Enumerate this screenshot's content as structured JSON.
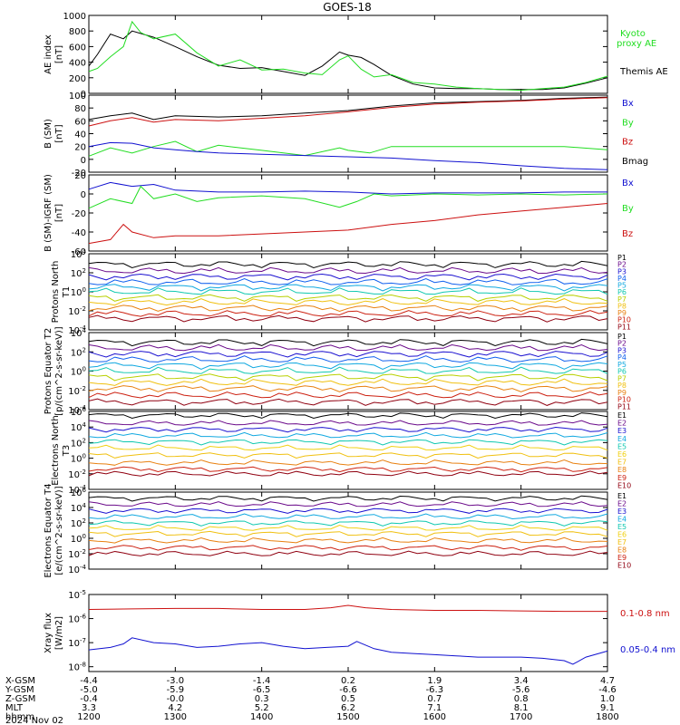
{
  "title": "GOES-18",
  "colors": {
    "black": "#000000",
    "green": "#22dd22",
    "blue": "#1010d0",
    "red": "#cc1010"
  },
  "time_axis": {
    "ticks": [
      "1200",
      "1300",
      "1400",
      "1500",
      "1600",
      "1700",
      "1800"
    ],
    "row_labels": [
      "X-GSM",
      "Y-GSM",
      "Z-GSM",
      "MLT",
      "hhmm"
    ],
    "rows": [
      [
        "-4.4",
        "-3.0",
        "-1.4",
        "0.2",
        "1.9",
        "3.4",
        "4.7"
      ],
      [
        "-5.0",
        "-5.9",
        "-6.5",
        "-6.6",
        "-6.3",
        "-5.6",
        "-4.6"
      ],
      [
        "-0.4",
        "-0.0",
        "0.3",
        "0.5",
        "0.7",
        "0.8",
        "1.0"
      ],
      [
        "3.3",
        "4.2",
        "5.2",
        "6.2",
        "7.1",
        "8.1",
        "9.1"
      ],
      [
        "1200",
        "1300",
        "1400",
        "1500",
        "1600",
        "1700",
        "1800"
      ]
    ],
    "date": "2024 Nov 02"
  },
  "chart_data": [
    {
      "type": "line",
      "ylabel": "AE index [nT]",
      "ylim": [
        0,
        1000
      ],
      "yticks": [
        "0",
        "200",
        "400",
        "600",
        "800",
        "1000"
      ],
      "legend": [
        {
          "text": "Kyoto",
          "color": "green"
        },
        {
          "text": "proxy AE",
          "color": "green"
        },
        {
          "text": "Themis AE",
          "color": "black"
        }
      ],
      "series": [
        {
          "name": "Themis AE",
          "color": "black",
          "x": [
            12.0,
            12.1,
            12.25,
            12.4,
            12.5,
            12.75,
            13.0,
            13.25,
            13.5,
            13.75,
            14.0,
            14.25,
            14.5,
            14.7,
            14.9,
            15.0,
            15.15,
            15.3,
            15.5,
            15.75,
            16.0,
            16.25,
            16.5,
            16.75,
            17.0,
            17.25,
            17.5,
            17.75,
            18.0
          ],
          "y": [
            350,
            500,
            760,
            700,
            800,
            720,
            600,
            470,
            360,
            320,
            330,
            280,
            230,
            350,
            530,
            490,
            460,
            370,
            230,
            120,
            70,
            60,
            60,
            50,
            50,
            50,
            70,
            130,
            200
          ]
        },
        {
          "name": "Kyoto proxy AE",
          "color": "green",
          "x": [
            12.0,
            12.1,
            12.25,
            12.4,
            12.5,
            12.6,
            12.75,
            13.0,
            13.25,
            13.5,
            13.75,
            14.0,
            14.25,
            14.5,
            14.7,
            14.9,
            15.0,
            15.15,
            15.3,
            15.5,
            15.75,
            16.0,
            16.25,
            16.5,
            16.75,
            17.0,
            17.25,
            17.5,
            17.75,
            18.0
          ],
          "y": [
            280,
            320,
            470,
            600,
            920,
            780,
            700,
            760,
            520,
            350,
            430,
            300,
            310,
            260,
            240,
            430,
            480,
            310,
            210,
            240,
            140,
            120,
            80,
            60,
            50,
            40,
            60,
            80,
            140,
            220
          ]
        }
      ]
    },
    {
      "type": "line",
      "ylabel": "B (SM) [nT]",
      "ylim": [
        -20,
        100
      ],
      "yticks": [
        "-20",
        "0",
        "20",
        "40",
        "60",
        "80",
        "100"
      ],
      "legend": [
        {
          "text": "Bx",
          "color": "blue"
        },
        {
          "text": "By",
          "color": "green"
        },
        {
          "text": "Bz",
          "color": "red"
        },
        {
          "text": "Bmag",
          "color": "black"
        }
      ],
      "series": [
        {
          "name": "Bmag",
          "color": "black",
          "x": [
            12.0,
            12.25,
            12.5,
            12.75,
            13.0,
            13.5,
            14.0,
            14.5,
            15.0,
            15.5,
            16.0,
            16.5,
            17.0,
            17.5,
            18.0
          ],
          "y": [
            62,
            68,
            72,
            62,
            68,
            66,
            68,
            72,
            76,
            83,
            88,
            90,
            92,
            95,
            97
          ]
        },
        {
          "name": "Bz",
          "color": "red",
          "x": [
            12.0,
            12.25,
            12.5,
            12.75,
            13.0,
            13.5,
            14.0,
            14.5,
            15.0,
            15.5,
            16.0,
            16.5,
            17.0,
            17.5,
            18.0
          ],
          "y": [
            52,
            60,
            65,
            58,
            62,
            60,
            64,
            68,
            74,
            81,
            86,
            89,
            91,
            94,
            96
          ]
        },
        {
          "name": "By",
          "color": "green",
          "x": [
            12.0,
            12.25,
            12.5,
            12.75,
            13.0,
            13.25,
            13.5,
            14.0,
            14.5,
            14.9,
            15.0,
            15.25,
            15.5,
            16.0,
            16.5,
            17.0,
            17.5,
            18.0
          ],
          "y": [
            5,
            18,
            10,
            20,
            28,
            12,
            22,
            14,
            6,
            18,
            14,
            10,
            20,
            20,
            20,
            20,
            20,
            15
          ]
        },
        {
          "name": "Bx",
          "color": "blue",
          "x": [
            12.0,
            12.25,
            12.5,
            12.75,
            13.0,
            13.25,
            13.5,
            14.0,
            14.5,
            15.0,
            15.5,
            16.0,
            16.5,
            17.0,
            17.5,
            18.0
          ],
          "y": [
            20,
            26,
            25,
            18,
            15,
            12,
            10,
            8,
            6,
            4,
            2,
            -2,
            -5,
            -10,
            -14,
            -16
          ]
        }
      ]
    },
    {
      "type": "line",
      "ylabel": "B (SM)-IGRF (SM) [nT]",
      "ylim": [
        -60,
        20
      ],
      "yticks": [
        "-60",
        "-40",
        "-20",
        "0",
        "20"
      ],
      "legend": [
        {
          "text": "Bx",
          "color": "blue"
        },
        {
          "text": "By",
          "color": "green"
        },
        {
          "text": "Bz",
          "color": "red"
        }
      ],
      "series": [
        {
          "name": "Bx",
          "color": "blue",
          "x": [
            12.0,
            12.25,
            12.5,
            12.75,
            13.0,
            13.5,
            14.0,
            14.5,
            15.0,
            15.5,
            16.0,
            16.5,
            17.0,
            17.5,
            18.0
          ],
          "y": [
            5,
            12,
            8,
            10,
            4,
            2,
            2,
            3,
            2,
            0,
            1,
            1,
            1,
            2,
            2
          ]
        },
        {
          "name": "By",
          "color": "green",
          "x": [
            12.0,
            12.25,
            12.5,
            12.6,
            12.75,
            13.0,
            13.25,
            13.5,
            14.0,
            14.5,
            14.9,
            15.1,
            15.3,
            15.5,
            16.0,
            16.5,
            17.0,
            17.5,
            18.0
          ],
          "y": [
            -15,
            -5,
            -10,
            8,
            -5,
            0,
            -8,
            -4,
            -2,
            -5,
            -14,
            -8,
            0,
            -2,
            0,
            -1,
            0,
            -1,
            0
          ]
        },
        {
          "name": "Bz",
          "color": "red",
          "x": [
            12.0,
            12.25,
            12.4,
            12.5,
            12.75,
            13.0,
            13.5,
            14.0,
            14.5,
            15.0,
            15.5,
            16.0,
            16.5,
            17.0,
            17.5,
            18.0
          ],
          "y": [
            -52,
            -48,
            -32,
            -40,
            -46,
            -44,
            -44,
            -42,
            -40,
            -38,
            -32,
            -28,
            -22,
            -18,
            -14,
            -10
          ]
        }
      ]
    },
    {
      "type": "line",
      "ylabel": "Protons North T1",
      "yscale": "log",
      "ylim": [
        -4,
        4
      ],
      "yticks": [
        "10^4",
        "10^2",
        "10^0",
        "10^-2",
        "10^-4"
      ],
      "legend": [
        {
          "text": "P1",
          "color": "#000000"
        },
        {
          "text": "P2",
          "color": "#6a0a8a"
        },
        {
          "text": "P3",
          "color": "#1a10d0"
        },
        {
          "text": "P4",
          "color": "#1060ee"
        },
        {
          "text": "P5",
          "color": "#10a8e0"
        },
        {
          "text": "P6",
          "color": "#10c8b0"
        },
        {
          "text": "P7",
          "color": "#b8d000"
        },
        {
          "text": "P8",
          "color": "#f0c010"
        },
        {
          "text": "P9",
          "color": "#e88010"
        },
        {
          "text": "P10",
          "color": "#cc2010"
        },
        {
          "text": "P11",
          "color": "#900010"
        }
      ],
      "levels": [
        2.9,
        2.2,
        1.6,
        1.0,
        0.5,
        0.0,
        -0.6,
        -1.1,
        -1.7,
        -2.3,
        -2.8
      ]
    },
    {
      "type": "line",
      "ylabel": "Protons Equator T2 [p/(cm^2-s-sr-keV)]",
      "yscale": "log",
      "ylim": [
        -4,
        4
      ],
      "yticks": [
        "10^4",
        "10^2",
        "10^0",
        "10^-2",
        "10^-4"
      ],
      "legend": [
        {
          "text": "P1",
          "color": "#000000"
        },
        {
          "text": "P2",
          "color": "#6a0a8a"
        },
        {
          "text": "P3",
          "color": "#1a10d0"
        },
        {
          "text": "P4",
          "color": "#1060ee"
        },
        {
          "text": "P5",
          "color": "#10a8e0"
        },
        {
          "text": "P6",
          "color": "#10c8b0"
        },
        {
          "text": "P7",
          "color": "#b8d000"
        },
        {
          "text": "P8",
          "color": "#f0c010"
        },
        {
          "text": "P9",
          "color": "#e88010"
        },
        {
          "text": "P10",
          "color": "#cc2010"
        },
        {
          "text": "P11",
          "color": "#900010"
        }
      ],
      "levels": [
        3.0,
        2.4,
        1.8,
        1.2,
        0.6,
        0.0,
        -0.6,
        -1.2,
        -1.8,
        -2.5,
        -3.2
      ]
    },
    {
      "type": "line",
      "ylabel": "Electrons North T3",
      "yscale": "log",
      "ylim": [
        -4,
        6
      ],
      "yticks": [
        "10^6",
        "10^4",
        "10^2",
        "10^0",
        "10^-2",
        "10^-4"
      ],
      "legend": [
        {
          "text": "E1",
          "color": "#000000"
        },
        {
          "text": "E2",
          "color": "#6a0a8a"
        },
        {
          "text": "E3",
          "color": "#1a10d0"
        },
        {
          "text": "E4",
          "color": "#10a8e0"
        },
        {
          "text": "E5",
          "color": "#10c8b0"
        },
        {
          "text": "E6",
          "color": "#f0d010"
        },
        {
          "text": "E7",
          "color": "#f0c010"
        },
        {
          "text": "E8",
          "color": "#e88010"
        },
        {
          "text": "E9",
          "color": "#cc2010"
        },
        {
          "text": "E10",
          "color": "#900010"
        }
      ],
      "levels": [
        5.5,
        4.5,
        3.7,
        2.9,
        2.1,
        1.3,
        0.4,
        -0.6,
        -1.4,
        -2.0
      ]
    },
    {
      "type": "line",
      "ylabel": "Electrons Equator T4 [e/(cm^2-s-sr-keV)]",
      "yscale": "log",
      "ylim": [
        -4,
        6
      ],
      "yticks": [
        "10^6",
        "10^4",
        "10^2",
        "10^0",
        "10^-2",
        "10^-4"
      ],
      "legend": [
        {
          "text": "E1",
          "color": "#000000"
        },
        {
          "text": "E2",
          "color": "#6a0a8a"
        },
        {
          "text": "E3",
          "color": "#1a10d0"
        },
        {
          "text": "E4",
          "color": "#10a8e0"
        },
        {
          "text": "E5",
          "color": "#10c8b0"
        },
        {
          "text": "E6",
          "color": "#f0d010"
        },
        {
          "text": "E7",
          "color": "#f0c010"
        },
        {
          "text": "E8",
          "color": "#e88010"
        },
        {
          "text": "E9",
          "color": "#cc2010"
        },
        {
          "text": "E10",
          "color": "#900010"
        }
      ],
      "levels": [
        5.2,
        4.4,
        3.6,
        2.8,
        2.0,
        1.3,
        0.6,
        -0.3,
        -1.2,
        -2.0
      ]
    },
    {
      "type": "line",
      "ylabel": "Xray flux [W/m2]",
      "yscale": "log",
      "ylim": [
        -8.2,
        -5
      ],
      "yticks": [
        "10^-5",
        "10^-6",
        "10^-7",
        "10^-8"
      ],
      "legend": [
        {
          "text": "0.1-0.8 nm",
          "color": "red"
        },
        {
          "text": "0.05-0.4 nm",
          "color": "blue"
        }
      ],
      "series": [
        {
          "name": "0.1-0.8 nm",
          "color": "red",
          "x": [
            12.0,
            12.5,
            13.0,
            13.5,
            14.0,
            14.5,
            14.8,
            15.0,
            15.2,
            15.5,
            16.0,
            16.5,
            17.0,
            17.5,
            18.0
          ],
          "y": [
            -5.62,
            -5.6,
            -5.58,
            -5.58,
            -5.62,
            -5.62,
            -5.55,
            -5.45,
            -5.55,
            -5.62,
            -5.66,
            -5.66,
            -5.68,
            -5.7,
            -5.7
          ]
        },
        {
          "name": "0.05-0.4 nm",
          "color": "blue",
          "x": [
            12.0,
            12.25,
            12.4,
            12.5,
            12.75,
            13.0,
            13.25,
            13.5,
            13.75,
            14.0,
            14.25,
            14.5,
            14.75,
            15.0,
            15.1,
            15.3,
            15.5,
            15.75,
            16.0,
            16.25,
            16.5,
            16.75,
            17.0,
            17.25,
            17.5,
            17.6,
            17.75,
            18.0
          ],
          "y": [
            -7.3,
            -7.2,
            -7.05,
            -6.8,
            -7.0,
            -7.05,
            -7.2,
            -7.15,
            -7.05,
            -7.0,
            -7.15,
            -7.25,
            -7.2,
            -7.15,
            -6.95,
            -7.25,
            -7.4,
            -7.45,
            -7.5,
            -7.55,
            -7.6,
            -7.6,
            -7.6,
            -7.65,
            -7.75,
            -7.9,
            -7.6,
            -7.35
          ]
        }
      ]
    }
  ]
}
